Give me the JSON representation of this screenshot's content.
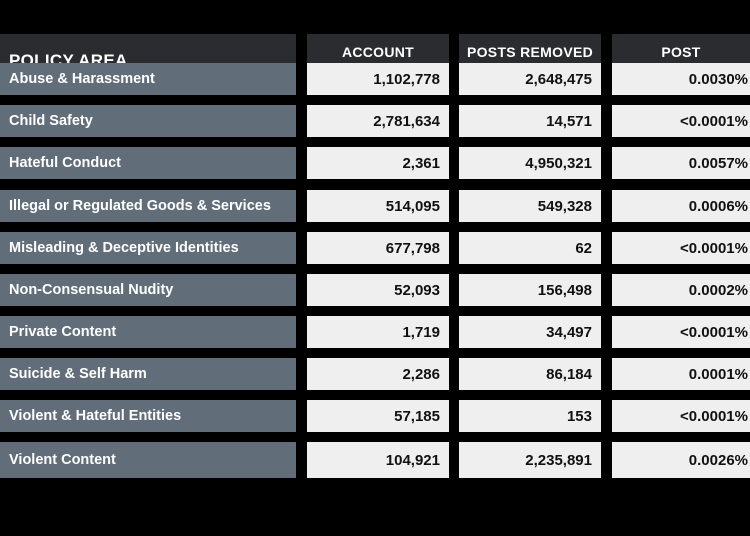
{
  "header": {
    "policy_area": "POLICY AREA",
    "account_suspensions": "ACCOUNT\nSUSPENSIONS",
    "posts_removed": "POSTS REMOVED\nOR LABELED",
    "post_violation_rate": "POST\nVIOLATION RATE"
  },
  "rows": [
    {
      "area": "Abuse & Harassment",
      "suspensions": "1,102,778",
      "posts": "2,648,475",
      "rate": "0.0030%"
    },
    {
      "area": "Child Safety",
      "suspensions": "2,781,634",
      "posts": "14,571",
      "rate": "<0.0001%"
    },
    {
      "area": "Hateful Conduct",
      "suspensions": "2,361",
      "posts": "4,950,321",
      "rate": "0.0057%"
    },
    {
      "area": "Illegal or Regulated Goods & Services",
      "suspensions": "514,095",
      "posts": "549,328",
      "rate": "0.0006%"
    },
    {
      "area": "Misleading & Deceptive Identities",
      "suspensions": "677,798",
      "posts": "62",
      "rate": "<0.0001%"
    },
    {
      "area": "Non-Consensual Nudity",
      "suspensions": "52,093",
      "posts": "156,498",
      "rate": "0.0002%"
    },
    {
      "area": "Private Content",
      "suspensions": "1,719",
      "posts": "34,497",
      "rate": "<0.0001%"
    },
    {
      "area": "Suicide & Self Harm",
      "suspensions": "2,286",
      "posts": "86,184",
      "rate": "0.0001%"
    },
    {
      "area": "Violent & Hateful Entities",
      "suspensions": "57,185",
      "posts": "153",
      "rate": "<0.0001%"
    },
    {
      "area": "Violent Content",
      "suspensions": "104,921",
      "posts": "2,235,891",
      "rate": "0.0026%"
    }
  ],
  "colors": {
    "background": "#000000",
    "header_cell": "#2b2c2f",
    "label_cell": "#616d79",
    "value_cell": "#efefef"
  }
}
